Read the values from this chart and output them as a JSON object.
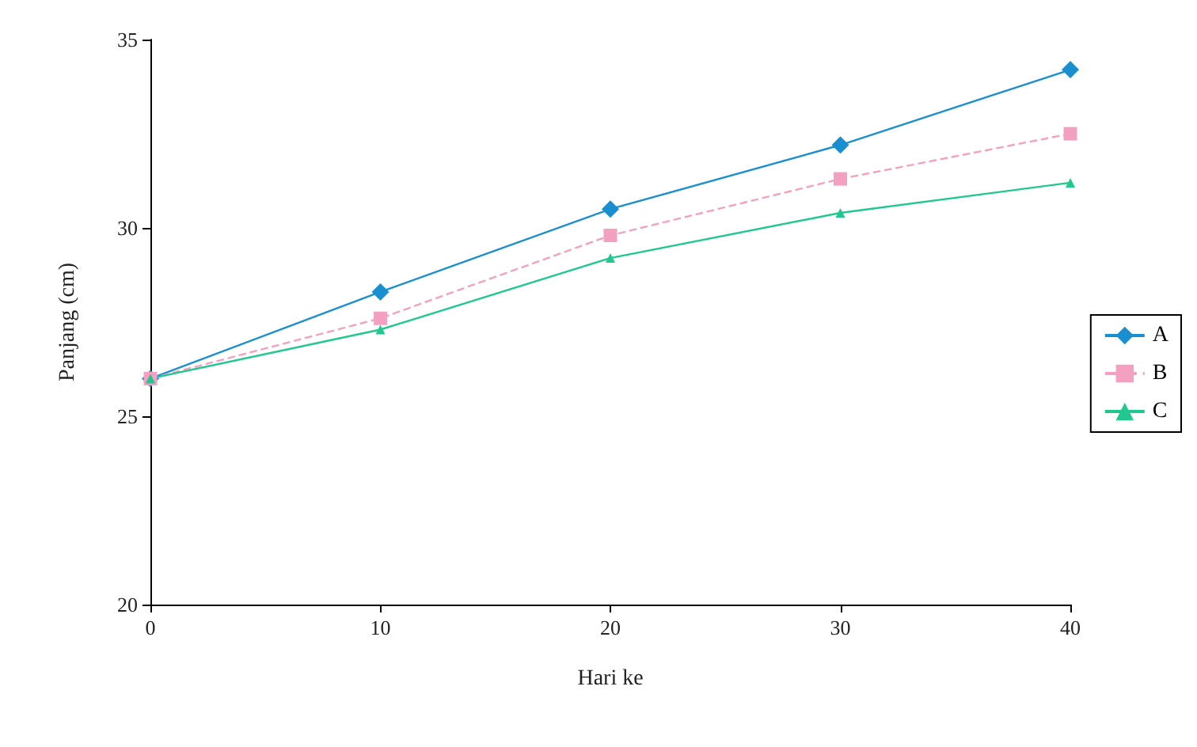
{
  "chart_data": {
    "type": "line",
    "xlabel": "Hari ke",
    "ylabel": "Panjang (cm)",
    "x": [
      0,
      10,
      20,
      30,
      40
    ],
    "series": [
      {
        "name": "A",
        "color": "#1a8fd0",
        "marker": "diamond",
        "line_style": "solid",
        "values": [
          26,
          28.3,
          30.5,
          32.2,
          34.2
        ]
      },
      {
        "name": "B",
        "color": "#f4a0c0",
        "marker": "square",
        "line_style": "dashed",
        "values": [
          26,
          27.6,
          29.8,
          31.3,
          32.5
        ]
      },
      {
        "name": "C",
        "color": "#20c890",
        "marker": "triangle",
        "line_style": "solid",
        "values": [
          26,
          27.3,
          29.2,
          30.4,
          31.2
        ]
      }
    ],
    "xlim": [
      0,
      40
    ],
    "xticks": [
      0,
      10,
      20,
      30,
      40
    ],
    "ylim": [
      20,
      35
    ],
    "yticks": [
      20,
      25,
      30,
      35
    ],
    "grid": false,
    "legend": "right"
  }
}
